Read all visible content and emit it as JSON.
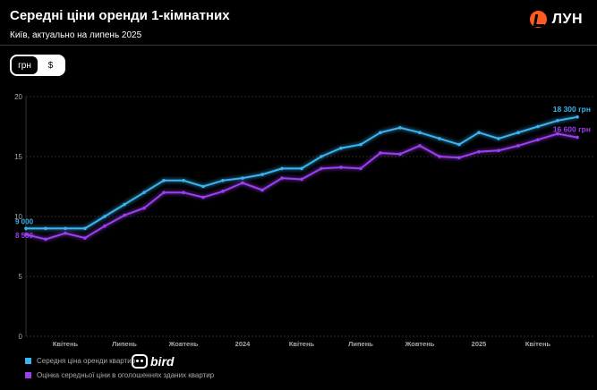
{
  "header": {
    "title": "Середні ціни оренди 1-кімнатних",
    "subtitle": "Київ, актуально на липень 2025"
  },
  "logo": {
    "icon": "lun-logo-icon",
    "text": "ЛУН",
    "color": "#ff5a1f"
  },
  "toggle": {
    "options": [
      "грн",
      "$"
    ],
    "selected": "грн"
  },
  "bird": {
    "icon": "bird-logo-icon",
    "text": "bird"
  },
  "colors": {
    "series1": "#3ab4f2",
    "series2": "#9b3ff0",
    "background": "#000000",
    "grid": "#555555"
  },
  "chart_data": {
    "type": "line",
    "title": "Середні ціни оренди 1-кімнатних",
    "ylim": [
      0,
      20
    ],
    "yticks": [
      0,
      5,
      10,
      15,
      20
    ],
    "xticks": [
      {
        "i": 2,
        "label": "Квітень"
      },
      {
        "i": 5,
        "label": "Липень"
      },
      {
        "i": 8,
        "label": "Жовтень"
      },
      {
        "i": 11,
        "label": "2024"
      },
      {
        "i": 14,
        "label": "Квітень"
      },
      {
        "i": 17,
        "label": "Липень"
      },
      {
        "i": 20,
        "label": "Жовтень"
      },
      {
        "i": 23,
        "label": "2025"
      },
      {
        "i": 26,
        "label": "Квітень"
      }
    ],
    "grid": true,
    "legend_position": "bottom-left",
    "series": [
      {
        "name": "Середня ціна оренди квартир",
        "color": "#3ab4f2",
        "start_label": "9 000",
        "end_label": "18 300 грн",
        "values": [
          9.0,
          9.0,
          9.0,
          9.0,
          10.0,
          11.0,
          12.0,
          13.0,
          13.0,
          12.5,
          13.0,
          13.2,
          13.5,
          14.0,
          14.0,
          15.0,
          15.7,
          16.0,
          17.0,
          17.4,
          17.0,
          16.5,
          16.0,
          17.0,
          16.5,
          17.0,
          17.5,
          18.0,
          18.3
        ]
      },
      {
        "name": "Оцінка середньої ціни в оголошеннях зданих квартир",
        "color": "#9b3ff0",
        "start_label": "8 500",
        "end_label": "16 600 грн",
        "values": [
          8.5,
          8.1,
          8.6,
          8.2,
          9.2,
          10.1,
          10.7,
          12.0,
          12.0,
          11.6,
          12.1,
          12.8,
          12.2,
          13.2,
          13.1,
          14.0,
          14.1,
          14.0,
          15.3,
          15.2,
          15.9,
          15.0,
          14.9,
          15.4,
          15.5,
          15.9,
          16.4,
          16.9,
          16.6
        ]
      }
    ]
  }
}
